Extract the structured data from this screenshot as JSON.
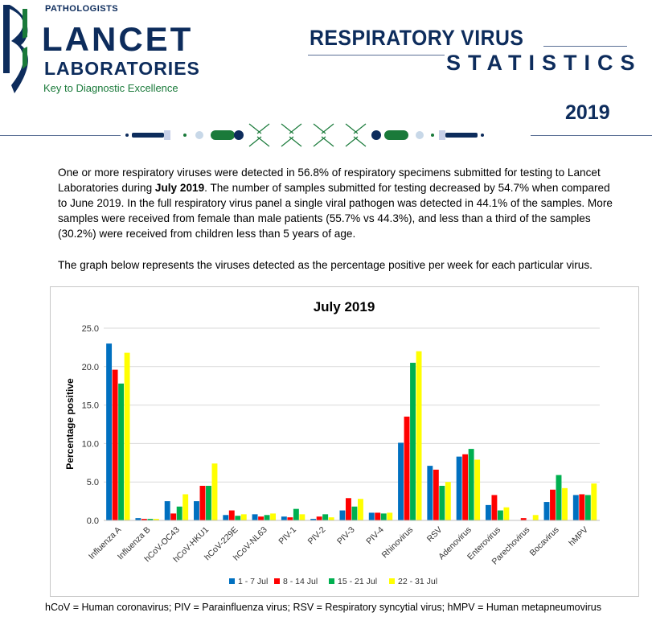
{
  "header": {
    "pathologists": "PATHOLOGISTS",
    "brand": "LANCET",
    "brand_sub": "LABORATORIES",
    "tagline": "Key to Diagnostic Excellence",
    "title_line1": "RESPIRATORY VIRUS",
    "title_line2": "STATISTICS",
    "year": "2019"
  },
  "colors": {
    "navy": "#0d2c5c",
    "green": "#1a7a3a"
  },
  "intro": {
    "p1_before": "One or more respiratory viruses were detected in 56.8% of respiratory specimens submitted for testing to Lancet Laboratories during ",
    "p1_bold": "July 2019",
    "p1_after": ". The number of samples submitted for testing decreased by 54.7% when compared to June 2019. In the full respiratory virus panel a single viral pathogen was detected in 44.1% of the samples. More samples were received from female than male patients (55.7% vs 44.3%), and less than a third of the samples (30.2%) were received from children less than 5 years of age.",
    "p2": "The graph below represents the viruses detected as the percentage positive per week for each particular virus."
  },
  "footnote": "hCoV = Human coronavirus; PIV = Parainfluenza virus; RSV = Respiratory syncytial virus; hMPV = Human metapneumovirus",
  "chart_data": {
    "type": "bar",
    "title": "July 2019",
    "xlabel": "",
    "ylabel": "Percentage positive",
    "ylim": [
      0,
      25
    ],
    "yticks": [
      "0.0",
      "5.0",
      "10.0",
      "15.0",
      "20.0",
      "25.0"
    ],
    "grid": true,
    "legend_position": "bottom",
    "categories": [
      "Influenza A",
      "Influenza B",
      "hCoV-OC43",
      "hCoV-HKU1",
      "hCoV-229E",
      "hCoV-NL63",
      "PIV-1",
      "PIV-2",
      "PIV-3",
      "PIV-4",
      "Rhinovirus",
      "RSV",
      "Adenovirus",
      "Enterovirus",
      "Parechovirus",
      "Bocavirus",
      "hMPV"
    ],
    "series": [
      {
        "name": "1 - 7 Jul",
        "color": "#0070c0",
        "values": [
          23.0,
          0.3,
          2.5,
          2.5,
          0.7,
          0.8,
          0.5,
          0.2,
          1.3,
          1.0,
          10.1,
          7.1,
          8.3,
          2.0,
          0.0,
          2.4,
          3.3
        ]
      },
      {
        "name": "8 - 14 Jul",
        "color": "#ff0000",
        "values": [
          19.6,
          0.2,
          0.9,
          4.5,
          1.3,
          0.5,
          0.4,
          0.5,
          2.9,
          1.0,
          13.5,
          6.6,
          8.6,
          3.3,
          0.3,
          4.0,
          3.4
        ]
      },
      {
        "name": "15 - 21 Jul",
        "color": "#00b050",
        "values": [
          17.8,
          0.2,
          1.8,
          4.5,
          0.6,
          0.7,
          1.5,
          0.8,
          1.8,
          0.9,
          20.5,
          4.5,
          9.3,
          1.3,
          0.0,
          5.9,
          3.3
        ]
      },
      {
        "name": "22 - 31 Jul",
        "color": "#ffff00",
        "values": [
          21.8,
          0.2,
          3.4,
          7.4,
          0.8,
          0.9,
          0.8,
          0.4,
          2.8,
          1.0,
          22.0,
          5.0,
          7.9,
          1.7,
          0.7,
          4.2,
          4.8
        ]
      }
    ]
  }
}
